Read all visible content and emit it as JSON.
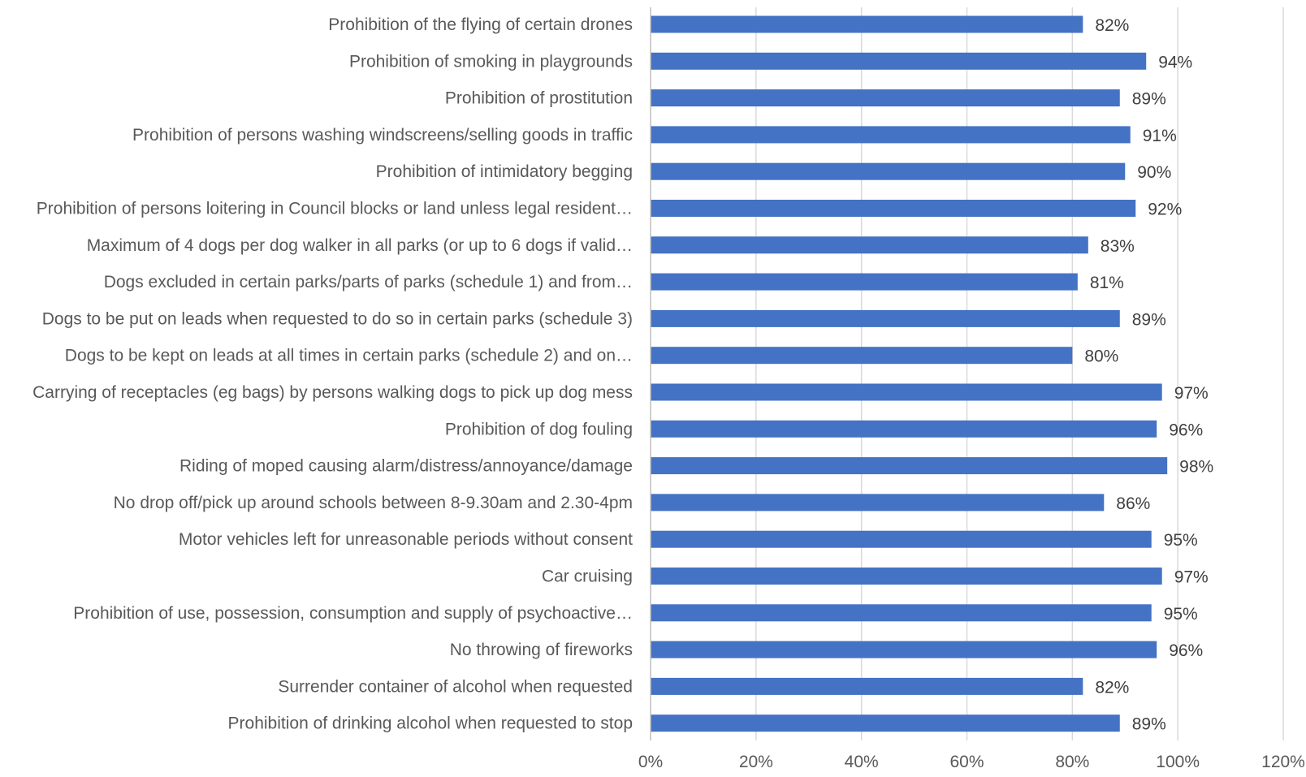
{
  "chart_data": {
    "type": "bar",
    "orientation": "horizontal",
    "categories": [
      "Prohibition of the flying of certain drones",
      "Prohibition of smoking in playgrounds",
      "Prohibition of prostitution",
      "Prohibition of persons washing windscreens/selling goods in traffic",
      "Prohibition of intimidatory begging",
      "Prohibition of persons loitering in Council blocks or land unless legal resident…",
      "Maximum of 4 dogs per dog walker in all parks (or up to 6 dogs if valid…",
      "Dogs excluded in certain parks/parts of parks (schedule 1) and from…",
      "Dogs to be put on leads when requested to do so in certain parks (schedule 3)",
      "Dogs to be kept on leads at all times in certain parks (schedule 2) and on…",
      "Carrying of receptacles (eg bags) by persons walking dogs to pick up dog mess",
      "Prohibition of dog fouling",
      "Riding of moped causing alarm/distress/annoyance/damage",
      "No drop off/pick up around schools between 8-9.30am and 2.30-4pm",
      "Motor vehicles left for unreasonable periods without consent",
      "Car cruising",
      "Prohibition of use, possession, consumption and supply of psychoactive…",
      "No throwing of fireworks",
      "Surrender container of alcohol when requested",
      "Prohibition of drinking alcohol when requested to stop"
    ],
    "values": [
      82,
      94,
      89,
      91,
      90,
      92,
      83,
      81,
      89,
      80,
      97,
      96,
      98,
      86,
      95,
      97,
      95,
      96,
      82,
      89
    ],
    "value_labels": [
      "82%",
      "94%",
      "89%",
      "91%",
      "90%",
      "92%",
      "83%",
      "81%",
      "89%",
      "80%",
      "97%",
      "96%",
      "98%",
      "86%",
      "95%",
      "97%",
      "95%",
      "96%",
      "82%",
      "89%"
    ],
    "xlim": [
      0,
      120
    ],
    "x_ticks": [
      0,
      20,
      40,
      60,
      80,
      100,
      120
    ],
    "x_tick_labels": [
      "0%",
      "20%",
      "40%",
      "60%",
      "80%",
      "100%",
      "120%"
    ],
    "grid": true,
    "legend": "none",
    "bar_color": "#4472c4"
  }
}
